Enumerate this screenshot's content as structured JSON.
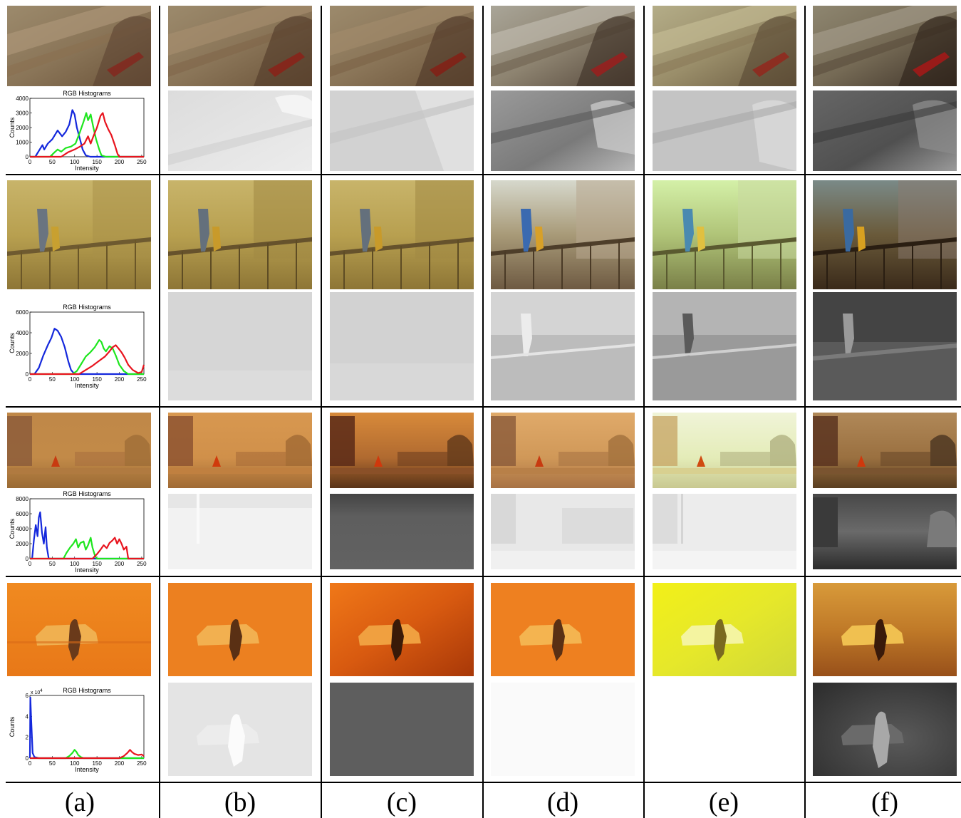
{
  "column_labels": [
    "(a)",
    "(b)",
    "(c)",
    "(d)",
    "(e)",
    "(f)"
  ],
  "histogram": {
    "title": "RGB Histograms",
    "xlabel": "Intensity",
    "ylabel": "Counts"
  },
  "colors": {
    "red": "#e8141e",
    "green": "#1ee61e",
    "blue": "#1428dc"
  },
  "rows": [
    {
      "hist": {
        "ylim": [
          0,
          4000
        ],
        "yticks": [
          "0",
          "1000",
          "2000",
          "3000",
          "4000"
        ],
        "xticks": [
          "0",
          "50",
          "100",
          "150",
          "200",
          "250"
        ],
        "exponent": "",
        "blue": [
          [
            0,
            0
          ],
          [
            12,
            0
          ],
          [
            20,
            400
          ],
          [
            28,
            800
          ],
          [
            32,
            500
          ],
          [
            40,
            900
          ],
          [
            50,
            1200
          ],
          [
            62,
            1800
          ],
          [
            72,
            1400
          ],
          [
            80,
            1700
          ],
          [
            88,
            2200
          ],
          [
            95,
            3200
          ],
          [
            100,
            2900
          ],
          [
            105,
            2000
          ],
          [
            112,
            1200
          ],
          [
            118,
            500
          ],
          [
            125,
            100
          ],
          [
            135,
            0
          ],
          [
            255,
            0
          ]
        ],
        "green": [
          [
            0,
            0
          ],
          [
            45,
            0
          ],
          [
            55,
            300
          ],
          [
            62,
            500
          ],
          [
            70,
            350
          ],
          [
            80,
            600
          ],
          [
            92,
            700
          ],
          [
            102,
            900
          ],
          [
            112,
            1700
          ],
          [
            120,
            2400
          ],
          [
            126,
            3000
          ],
          [
            130,
            2500
          ],
          [
            136,
            2900
          ],
          [
            142,
            2000
          ],
          [
            148,
            1200
          ],
          [
            155,
            500
          ],
          [
            160,
            100
          ],
          [
            170,
            0
          ],
          [
            255,
            0
          ]
        ],
        "red": [
          [
            0,
            0
          ],
          [
            70,
            0
          ],
          [
            85,
            300
          ],
          [
            100,
            500
          ],
          [
            112,
            700
          ],
          [
            122,
            900
          ],
          [
            130,
            1400
          ],
          [
            136,
            900
          ],
          [
            142,
            1400
          ],
          [
            150,
            2000
          ],
          [
            158,
            2800
          ],
          [
            163,
            3000
          ],
          [
            168,
            2400
          ],
          [
            175,
            1900
          ],
          [
            182,
            1500
          ],
          [
            190,
            800
          ],
          [
            196,
            200
          ],
          [
            200,
            0
          ],
          [
            255,
            0
          ]
        ]
      }
    },
    {
      "hist": {
        "ylim": [
          0,
          6000
        ],
        "yticks": [
          "0",
          "2000",
          "4000",
          "6000"
        ],
        "xticks": [
          "0",
          "50",
          "100",
          "150",
          "200",
          "250"
        ],
        "exponent": "",
        "blue": [
          [
            0,
            0
          ],
          [
            10,
            0
          ],
          [
            20,
            600
          ],
          [
            30,
            1800
          ],
          [
            40,
            2800
          ],
          [
            48,
            3500
          ],
          [
            55,
            4400
          ],
          [
            62,
            4200
          ],
          [
            70,
            3600
          ],
          [
            78,
            2600
          ],
          [
            86,
            1200
          ],
          [
            92,
            400
          ],
          [
            100,
            0
          ],
          [
            255,
            0
          ]
        ],
        "green": [
          [
            0,
            0
          ],
          [
            95,
            0
          ],
          [
            105,
            300
          ],
          [
            115,
            1000
          ],
          [
            125,
            1700
          ],
          [
            135,
            2100
          ],
          [
            145,
            2600
          ],
          [
            155,
            3300
          ],
          [
            160,
            3100
          ],
          [
            165,
            2500
          ],
          [
            170,
            2200
          ],
          [
            178,
            2700
          ],
          [
            185,
            2500
          ],
          [
            192,
            1800
          ],
          [
            200,
            900
          ],
          [
            210,
            300
          ],
          [
            220,
            0
          ],
          [
            255,
            0
          ]
        ],
        "red": [
          [
            0,
            0
          ],
          [
            110,
            0
          ],
          [
            125,
            400
          ],
          [
            140,
            800
          ],
          [
            155,
            1300
          ],
          [
            168,
            1700
          ],
          [
            178,
            2200
          ],
          [
            185,
            2600
          ],
          [
            192,
            2800
          ],
          [
            198,
            2500
          ],
          [
            205,
            2100
          ],
          [
            212,
            1600
          ],
          [
            220,
            900
          ],
          [
            230,
            400
          ],
          [
            242,
            100
          ],
          [
            250,
            200
          ],
          [
            255,
            900
          ]
        ]
      }
    },
    {
      "hist": {
        "ylim": [
          0,
          8000
        ],
        "yticks": [
          "0",
          "2000",
          "4000",
          "6000",
          "8000"
        ],
        "xticks": [
          "0",
          "50",
          "100",
          "150",
          "200",
          "250"
        ],
        "exponent": "",
        "blue": [
          [
            0,
            0
          ],
          [
            5,
            0
          ],
          [
            9,
            2500
          ],
          [
            13,
            4500
          ],
          [
            17,
            3000
          ],
          [
            20,
            5500
          ],
          [
            23,
            6200
          ],
          [
            27,
            3500
          ],
          [
            31,
            2000
          ],
          [
            35,
            4200
          ],
          [
            38,
            1500
          ],
          [
            42,
            0
          ],
          [
            255,
            0
          ]
        ],
        "green": [
          [
            0,
            0
          ],
          [
            75,
            0
          ],
          [
            82,
            800
          ],
          [
            90,
            1500
          ],
          [
            97,
            2000
          ],
          [
            103,
            2600
          ],
          [
            108,
            1500
          ],
          [
            113,
            2100
          ],
          [
            120,
            2300
          ],
          [
            125,
            1200
          ],
          [
            130,
            1800
          ],
          [
            136,
            2800
          ],
          [
            140,
            1500
          ],
          [
            146,
            300
          ],
          [
            150,
            0
          ],
          [
            255,
            0
          ]
        ],
        "red": [
          [
            0,
            0
          ],
          [
            140,
            0
          ],
          [
            150,
            600
          ],
          [
            158,
            1200
          ],
          [
            165,
            1800
          ],
          [
            172,
            1400
          ],
          [
            178,
            2100
          ],
          [
            184,
            2400
          ],
          [
            190,
            2800
          ],
          [
            195,
            2000
          ],
          [
            200,
            2600
          ],
          [
            205,
            2000
          ],
          [
            210,
            1200
          ],
          [
            216,
            1600
          ],
          [
            220,
            0
          ],
          [
            255,
            0
          ]
        ]
      }
    },
    {
      "hist": {
        "ylim": [
          0,
          6
        ],
        "yticks": [
          "0",
          "2",
          "4",
          "6"
        ],
        "xticks": [
          "0",
          "50",
          "100",
          "150",
          "200",
          "250"
        ],
        "exponent": "x 10",
        "exponent_power": "4",
        "blue": [
          [
            0,
            0
          ],
          [
            1,
            5.8
          ],
          [
            3,
            3.5
          ],
          [
            6,
            0.5
          ],
          [
            10,
            0.1
          ],
          [
            20,
            0
          ],
          [
            255,
            0
          ]
        ],
        "green": [
          [
            0,
            0
          ],
          [
            80,
            0
          ],
          [
            88,
            0.2
          ],
          [
            95,
            0.5
          ],
          [
            100,
            0.8
          ],
          [
            104,
            0.6
          ],
          [
            108,
            0.3
          ],
          [
            114,
            0.1
          ],
          [
            120,
            0
          ],
          [
            255,
            0
          ]
        ],
        "red": [
          [
            0,
            0
          ],
          [
            200,
            0
          ],
          [
            210,
            0.2
          ],
          [
            218,
            0.5
          ],
          [
            224,
            0.8
          ],
          [
            228,
            0.6
          ],
          [
            234,
            0.4
          ],
          [
            242,
            0.3
          ],
          [
            250,
            0.35
          ],
          [
            255,
            0.2
          ]
        ]
      }
    }
  ]
}
